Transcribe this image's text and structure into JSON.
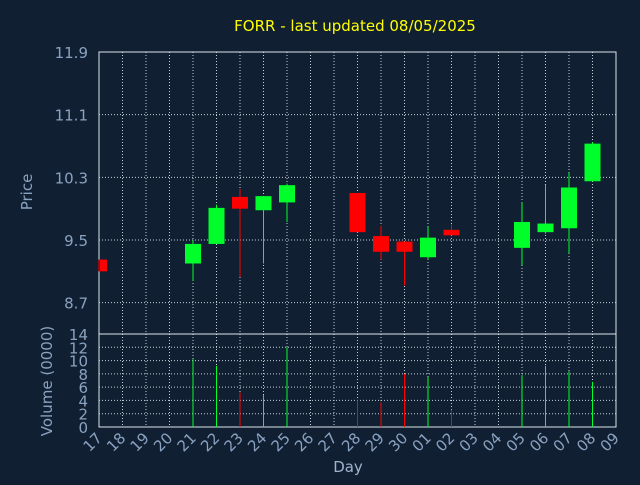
{
  "chart_data": {
    "type": "candlestick",
    "title": "FORR - last updated 08/05/2025",
    "xlabel": "Day",
    "price": {
      "ylabel": "Price",
      "ylim": [
        8.3,
        11.9
      ],
      "yticks": [
        "11.9",
        "11.1",
        "10.3",
        "9.5",
        "8.7"
      ],
      "ytick_values": [
        11.9,
        11.1,
        10.3,
        9.5,
        8.7
      ]
    },
    "volume": {
      "ylabel": "Volume (0000)",
      "ylim": [
        0,
        14
      ],
      "yticks": [
        "14",
        "12",
        "10",
        "8",
        "6",
        "4",
        "2",
        "0"
      ],
      "ytick_values": [
        14,
        12,
        10,
        8,
        6,
        4,
        2,
        0
      ]
    },
    "x_labels": [
      "17",
      "18",
      "19",
      "20",
      "21",
      "22",
      "23",
      "24",
      "25",
      "26",
      "27",
      "28",
      "29",
      "30",
      "01",
      "02",
      "03",
      "04",
      "05",
      "06",
      "07",
      "08",
      "09"
    ],
    "grid": true,
    "candles": [
      {
        "day": "17",
        "open": 9.25,
        "high": 9.25,
        "low": 9.1,
        "close": 9.1,
        "volume": null
      },
      {
        "day": "21",
        "open": 9.2,
        "high": 9.5,
        "low": 8.98,
        "close": 9.45,
        "volume": 10.2
      },
      {
        "day": "22",
        "open": 9.45,
        "high": 9.95,
        "low": 9.45,
        "close": 9.91,
        "volume": 9.2
      },
      {
        "day": "23",
        "open": 10.05,
        "high": 10.15,
        "low": 9.03,
        "close": 9.9,
        "volume": 5.2
      },
      {
        "day": "24",
        "open": 9.88,
        "high": 10.06,
        "low": 9.2,
        "close": 10.06,
        "volume": 4.8
      },
      {
        "day": "25",
        "open": 9.98,
        "high": 10.22,
        "low": 9.73,
        "close": 10.2,
        "volume": 12.0
      },
      {
        "day": "28",
        "open": 10.1,
        "high": 10.1,
        "low": 9.6,
        "close": 9.6,
        "volume": 4.0
      },
      {
        "day": "29",
        "open": 9.55,
        "high": 9.68,
        "low": 9.25,
        "close": 9.35,
        "volume": 3.7
      },
      {
        "day": "30",
        "open": 9.48,
        "high": 9.48,
        "low": 8.92,
        "close": 9.35,
        "volume": 8.0
      },
      {
        "day": "01",
        "open": 9.28,
        "high": 9.67,
        "low": 9.25,
        "close": 9.53,
        "volume": 7.5
      },
      {
        "day": "02",
        "open": 9.63,
        "high": 9.7,
        "low": 9.56,
        "close": 9.56,
        "volume": 2.6
      },
      {
        "day": "05",
        "open": 9.4,
        "high": 9.98,
        "low": 9.18,
        "close": 9.73,
        "volume": 7.8
      },
      {
        "day": "06",
        "open": 9.6,
        "high": 10.2,
        "low": 9.58,
        "close": 9.71,
        "volume": 9.2
      },
      {
        "day": "07",
        "open": 9.65,
        "high": 10.36,
        "low": 9.33,
        "close": 10.17,
        "volume": 8.4
      },
      {
        "day": "08",
        "open": 10.25,
        "high": 10.75,
        "low": 10.25,
        "close": 10.73,
        "volume": 6.8
      }
    ],
    "colors": {
      "background": "#102032",
      "up": "#00ff2a",
      "down": "#ff0000",
      "grid": "#c8d0d8",
      "text": "#8aa2c0",
      "title": "#ffff00"
    }
  }
}
